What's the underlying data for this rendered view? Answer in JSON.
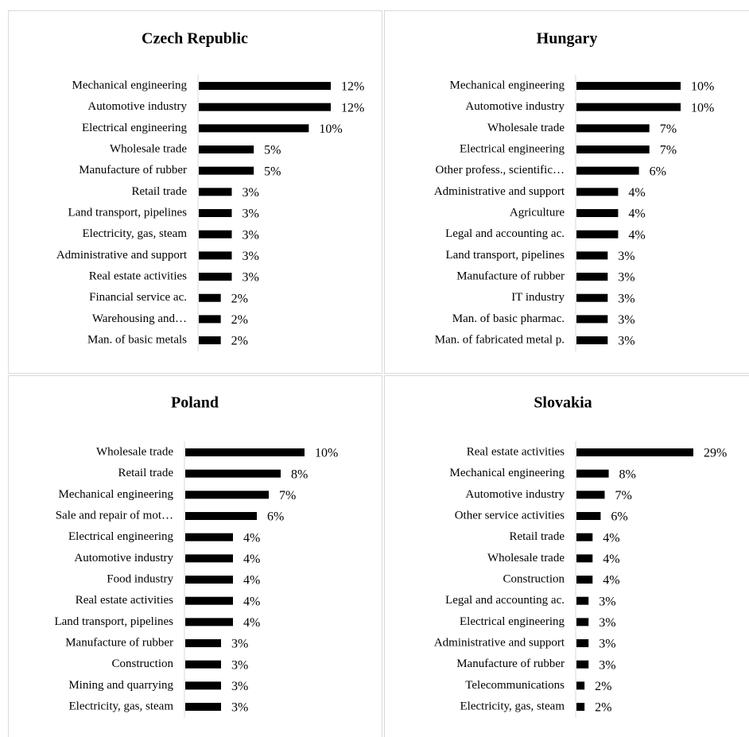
{
  "chart_data": [
    {
      "type": "bar",
      "title": "Czech Republic",
      "color": "#000000",
      "categories": [
        "Mechanical engineering",
        "Automotive industry",
        "Electrical engineering",
        "Wholesale trade",
        "Manufacture of rubber",
        "Retail trade",
        "Land transport, pipelines",
        "Electricity, gas, steam",
        "Administrative and support",
        "Real estate activities",
        "Financial service ac.",
        "Warehousing and…",
        "Man. of basic metals"
      ],
      "values": [
        12,
        12,
        10,
        5,
        5,
        3,
        3,
        3,
        3,
        3,
        2,
        2,
        2
      ],
      "value_labels": [
        "12%",
        "12%",
        "10%",
        "5%",
        "5%",
        "3%",
        "3%",
        "3%",
        "3%",
        "3%",
        "2%",
        "2%",
        "2%"
      ]
    },
    {
      "type": "bar",
      "title": "Hungary",
      "color": "#000000",
      "categories": [
        "Mechanical engineering",
        "Automotive industry",
        "Wholesale trade",
        "Electrical engineering",
        "Other profess., scientific…",
        "Administrative and support",
        "Agriculture",
        "Legal and accounting ac.",
        "Land transport, pipelines",
        "Manufacture of rubber",
        "IT industry",
        "Man. of basic pharmac.",
        "Man. of fabricated metal p."
      ],
      "values": [
        10,
        10,
        7,
        7,
        6,
        4,
        4,
        4,
        3,
        3,
        3,
        3,
        3
      ],
      "value_labels": [
        "10%",
        "10%",
        "7%",
        "7%",
        "6%",
        "4%",
        "4%",
        "4%",
        "3%",
        "3%",
        "3%",
        "3%",
        "3%"
      ]
    },
    {
      "type": "bar",
      "title": "Poland",
      "color": "#000000",
      "categories": [
        "Wholesale trade",
        "Retail trade",
        "Mechanical engineering",
        "Sale and repair of mot…",
        "Electrical engineering",
        "Automotive industry",
        "Food industry",
        "Real estate activities",
        "Land transport, pipelines",
        "Manufacture of rubber",
        "Construction",
        "Mining and quarrying",
        "Electricity, gas, steam"
      ],
      "values": [
        10,
        8,
        7,
        6,
        4,
        4,
        4,
        4,
        4,
        3,
        3,
        3,
        3
      ],
      "value_labels": [
        "10%",
        "8%",
        "7%",
        "6%",
        "4%",
        "4%",
        "4%",
        "4%",
        "4%",
        "3%",
        "3%",
        "3%",
        "3%"
      ]
    },
    {
      "type": "bar",
      "title": "Slovakia",
      "color": "#000000",
      "categories": [
        "Real estate activities",
        "Mechanical engineering",
        "Automotive industry",
        "Other service activities",
        "Retail trade",
        "Wholesale trade",
        "Construction",
        "Legal and accounting ac.",
        "Electrical engineering",
        "Administrative and support",
        "Manufacture of rubber",
        "Telecommunications",
        "Electricity, gas, steam"
      ],
      "values": [
        29,
        8,
        7,
        6,
        4,
        4,
        4,
        3,
        3,
        3,
        3,
        2,
        2
      ],
      "value_labels": [
        "29%",
        "8%",
        "7%",
        "6%",
        "4%",
        "4%",
        "4%",
        "3%",
        "3%",
        "3%",
        "3%",
        "2%",
        "2%"
      ]
    }
  ]
}
